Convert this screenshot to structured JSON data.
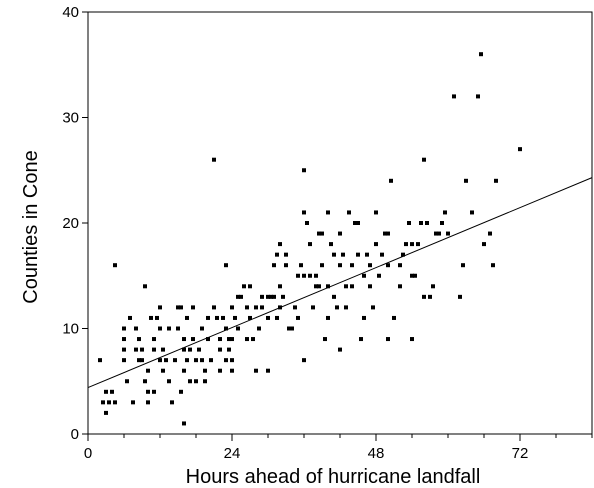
{
  "chart_data": {
    "type": "scatter",
    "title": "",
    "xlabel": "Hours ahead of hurricane landfall",
    "ylabel": "Counties in Cone",
    "xlim": [
      0,
      84
    ],
    "ylim": [
      0,
      40
    ],
    "x_ticks": [
      0,
      24,
      48,
      72
    ],
    "y_ticks": [
      0,
      10,
      20,
      30,
      40
    ],
    "x_minor_ticks": [
      6,
      12,
      18,
      30,
      36,
      42,
      54,
      60,
      66,
      78,
      84
    ],
    "grid": false,
    "legend": "none",
    "colors": {
      "points": "#000000",
      "trendline": "#000000",
      "axes": "#000000"
    },
    "trendline": {
      "x": [
        0,
        84
      ],
      "y": [
        4.4,
        24.3
      ]
    },
    "points": [
      [
        2,
        7
      ],
      [
        2.5,
        3
      ],
      [
        3,
        2
      ],
      [
        3,
        4
      ],
      [
        3.5,
        3
      ],
      [
        4,
        4
      ],
      [
        4.5,
        16
      ],
      [
        4.5,
        3
      ],
      [
        6,
        10
      ],
      [
        6,
        7
      ],
      [
        6,
        8
      ],
      [
        6,
        9
      ],
      [
        6.5,
        5
      ],
      [
        7,
        11
      ],
      [
        7.5,
        3
      ],
      [
        8,
        10
      ],
      [
        8,
        8
      ],
      [
        8.5,
        7
      ],
      [
        8.5,
        9
      ],
      [
        9,
        8
      ],
      [
        9,
        7
      ],
      [
        9.5,
        14
      ],
      [
        9.5,
        5
      ],
      [
        10,
        4
      ],
      [
        10,
        3
      ],
      [
        10,
        6
      ],
      [
        10.5,
        11
      ],
      [
        11,
        9
      ],
      [
        11,
        4
      ],
      [
        11,
        8
      ],
      [
        11.5,
        11
      ],
      [
        12,
        7
      ],
      [
        12,
        12
      ],
      [
        12,
        10
      ],
      [
        12.5,
        6
      ],
      [
        12.5,
        8
      ],
      [
        13,
        7
      ],
      [
        13.5,
        10
      ],
      [
        13.5,
        5
      ],
      [
        14,
        3
      ],
      [
        14.5,
        7
      ],
      [
        15,
        12
      ],
      [
        15,
        10
      ],
      [
        15.5,
        12
      ],
      [
        15.5,
        4
      ],
      [
        16,
        1
      ],
      [
        16,
        6
      ],
      [
        16,
        8
      ],
      [
        16,
        9
      ],
      [
        16.5,
        7
      ],
      [
        16.5,
        11
      ],
      [
        17,
        5
      ],
      [
        17,
        8
      ],
      [
        17.5,
        9
      ],
      [
        17.5,
        12
      ],
      [
        18,
        7
      ],
      [
        18,
        5
      ],
      [
        18.5,
        8
      ],
      [
        19,
        10
      ],
      [
        19,
        7
      ],
      [
        19.5,
        6
      ],
      [
        19.5,
        5
      ],
      [
        20,
        9
      ],
      [
        20,
        11
      ],
      [
        20.5,
        7
      ],
      [
        21,
        12
      ],
      [
        21,
        26
      ],
      [
        21.5,
        11
      ],
      [
        22,
        9
      ],
      [
        22,
        6
      ],
      [
        22,
        8
      ],
      [
        22.5,
        11
      ],
      [
        23,
        7
      ],
      [
        23,
        10
      ],
      [
        23,
        16
      ],
      [
        23.5,
        8
      ],
      [
        23.5,
        9
      ],
      [
        24,
        6
      ],
      [
        24,
        12
      ],
      [
        24,
        9
      ],
      [
        24,
        7
      ],
      [
        24.5,
        11
      ],
      [
        25,
        13
      ],
      [
        25,
        10
      ],
      [
        25.5,
        13
      ],
      [
        26,
        14
      ],
      [
        26.5,
        12
      ],
      [
        26.5,
        9
      ],
      [
        27,
        14
      ],
      [
        27,
        11
      ],
      [
        27.5,
        9
      ],
      [
        28,
        12
      ],
      [
        28,
        6
      ],
      [
        28.5,
        10
      ],
      [
        29,
        13
      ],
      [
        29,
        12
      ],
      [
        30,
        11
      ],
      [
        30,
        13
      ],
      [
        30,
        6
      ],
      [
        30.5,
        13
      ],
      [
        31,
        13
      ],
      [
        31,
        16
      ],
      [
        31.5,
        17
      ],
      [
        31.5,
        11
      ],
      [
        32,
        12
      ],
      [
        32,
        14
      ],
      [
        32,
        18
      ],
      [
        32.5,
        13
      ],
      [
        33,
        16
      ],
      [
        33,
        17
      ],
      [
        33.5,
        10
      ],
      [
        34,
        10
      ],
      [
        34.5,
        12
      ],
      [
        35,
        15
      ],
      [
        35,
        11
      ],
      [
        35.5,
        16
      ],
      [
        36,
        7
      ],
      [
        36,
        21
      ],
      [
        36,
        25
      ],
      [
        36,
        15
      ],
      [
        36.5,
        20
      ],
      [
        37,
        15
      ],
      [
        37,
        18
      ],
      [
        37.5,
        12
      ],
      [
        38,
        14
      ],
      [
        38,
        15
      ],
      [
        38.5,
        19
      ],
      [
        38.5,
        14
      ],
      [
        39,
        16
      ],
      [
        39,
        19
      ],
      [
        39.5,
        9
      ],
      [
        40,
        14
      ],
      [
        40,
        21
      ],
      [
        40,
        11
      ],
      [
        40.5,
        18
      ],
      [
        41,
        13
      ],
      [
        41,
        17
      ],
      [
        41.5,
        12
      ],
      [
        42,
        8
      ],
      [
        42,
        16
      ],
      [
        42,
        19
      ],
      [
        42.5,
        17
      ],
      [
        43,
        12
      ],
      [
        43,
        14
      ],
      [
        43.5,
        21
      ],
      [
        44,
        14
      ],
      [
        44,
        16
      ],
      [
        44.5,
        20
      ],
      [
        45,
        20
      ],
      [
        45,
        17
      ],
      [
        45.5,
        9
      ],
      [
        46,
        15
      ],
      [
        46,
        11
      ],
      [
        46.5,
        17
      ],
      [
        47,
        14
      ],
      [
        47,
        16
      ],
      [
        47.5,
        12
      ],
      [
        48,
        21
      ],
      [
        48,
        18
      ],
      [
        48.5,
        15
      ],
      [
        49,
        17
      ],
      [
        49.5,
        19
      ],
      [
        50,
        16
      ],
      [
        50,
        19
      ],
      [
        50,
        9
      ],
      [
        50.5,
        24
      ],
      [
        51,
        11
      ],
      [
        52,
        14
      ],
      [
        52,
        16
      ],
      [
        52.5,
        17
      ],
      [
        53,
        18
      ],
      [
        53.5,
        20
      ],
      [
        54,
        18
      ],
      [
        54,
        15
      ],
      [
        54,
        9
      ],
      [
        54.5,
        15
      ],
      [
        55,
        18
      ],
      [
        55.5,
        20
      ],
      [
        56,
        13
      ],
      [
        56,
        26
      ],
      [
        56.5,
        20
      ],
      [
        57,
        13
      ],
      [
        57.5,
        14
      ],
      [
        58,
        19
      ],
      [
        58.5,
        19
      ],
      [
        59,
        20
      ],
      [
        59.5,
        21
      ],
      [
        60,
        19
      ],
      [
        61,
        32
      ],
      [
        62,
        13
      ],
      [
        62.5,
        16
      ],
      [
        63,
        24
      ],
      [
        64,
        21
      ],
      [
        65,
        32
      ],
      [
        65.5,
        36
      ],
      [
        66,
        18
      ],
      [
        67,
        19
      ],
      [
        67.5,
        16
      ],
      [
        68,
        24
      ],
      [
        72,
        27
      ]
    ]
  }
}
